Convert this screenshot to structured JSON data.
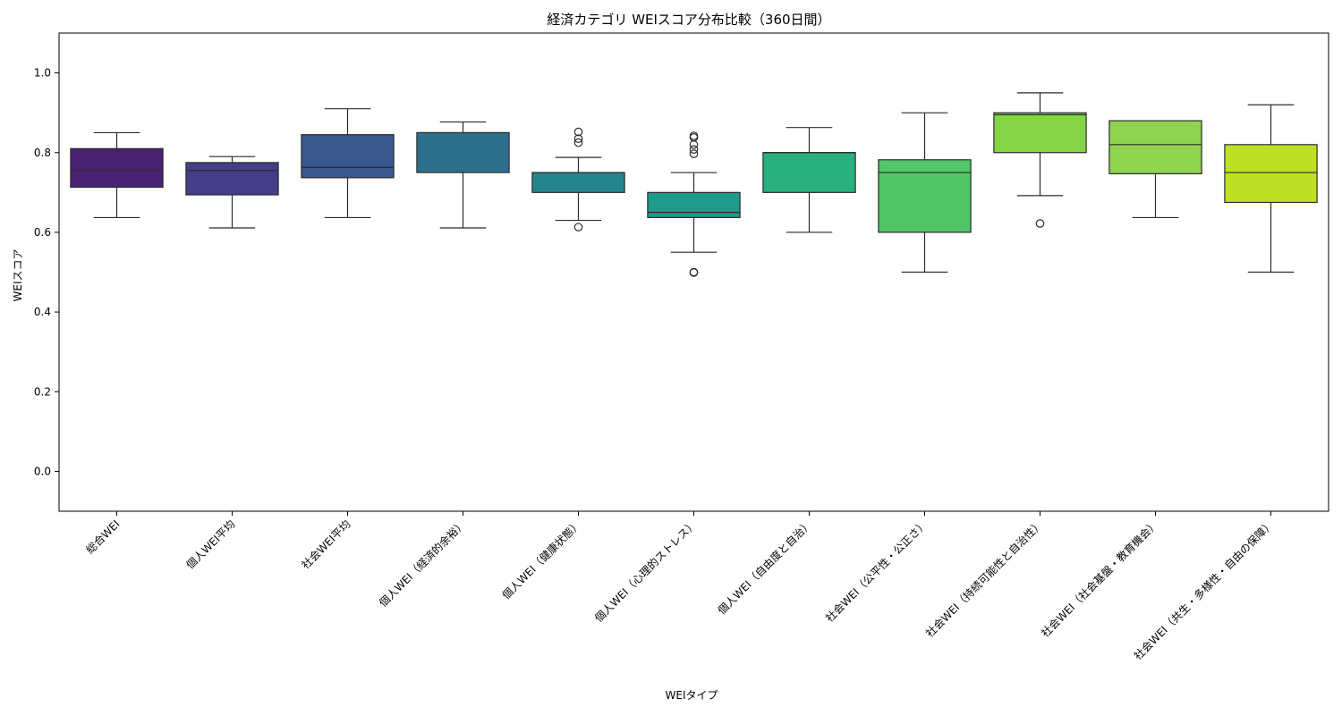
{
  "chart_data": {
    "type": "box",
    "title": "経済カテゴリ WEIスコア分布比較（360日間）",
    "xlabel": "WEIタイプ",
    "ylabel": "WEIスコア",
    "ylim": [
      -0.1,
      1.1
    ],
    "yticks": [
      "0.0",
      "0.2",
      "0.4",
      "0.6",
      "0.8",
      "1.0"
    ],
    "grid": false,
    "categories": [
      "総合WEI",
      "個人WEI平均",
      "社会WEI平均",
      "個人WEI（経済的余裕）",
      "個人WEI（健康状態）",
      "個人WEI（心理的ストレス）",
      "個人WEI（自由度と自治）",
      "社会WEI（公平性・公正さ）",
      "社会WEI（持続可能性と自治性）",
      "社会WEI（社会基盤・教育機会）",
      "社会WEI（共生・多様性・自由の保障）"
    ],
    "boxes": [
      {
        "whisker_low": 0.637,
        "q1": 0.713,
        "median": 0.755,
        "q3": 0.81,
        "whisker_high": 0.85,
        "outliers": [],
        "color": "#482173"
      },
      {
        "whisker_low": 0.611,
        "q1": 0.694,
        "median": 0.755,
        "q3": 0.775,
        "whisker_high": 0.79,
        "outliers": [],
        "color": "#433e85"
      },
      {
        "whisker_low": 0.637,
        "q1": 0.737,
        "median": 0.763,
        "q3": 0.845,
        "whisker_high": 0.91,
        "outliers": [],
        "color": "#38588c"
      },
      {
        "whisker_low": 0.611,
        "q1": 0.75,
        "median": 0.85,
        "q3": 0.85,
        "whisker_high": 0.877,
        "outliers": [],
        "color": "#2d708e"
      },
      {
        "whisker_low": 0.63,
        "q1": 0.7,
        "median": 0.75,
        "q3": 0.75,
        "whisker_high": 0.788,
        "outliers": [
          0.613,
          0.825,
          0.835,
          0.852
        ],
        "color": "#25858e"
      },
      {
        "whisker_low": 0.55,
        "q1": 0.637,
        "median": 0.65,
        "q3": 0.7,
        "whisker_high": 0.75,
        "outliers": [
          0.499,
          0.5,
          0.797,
          0.808,
          0.82,
          0.838,
          0.842
        ],
        "color": "#1e9b8a"
      },
      {
        "whisker_low": 0.6,
        "q1": 0.7,
        "median": 0.8,
        "q3": 0.8,
        "whisker_high": 0.863,
        "outliers": [],
        "color": "#2ab07f"
      },
      {
        "whisker_low": 0.5,
        "q1": 0.6,
        "median": 0.75,
        "q3": 0.782,
        "whisker_high": 0.9,
        "outliers": [],
        "color": "#52c569"
      },
      {
        "whisker_low": 0.692,
        "q1": 0.8,
        "median": 0.895,
        "q3": 0.9,
        "whisker_high": 0.95,
        "outliers": [
          0.622
        ],
        "color": "#86d549"
      },
      {
        "whisker_low": 0.637,
        "q1": 0.747,
        "median": 0.82,
        "q3": 0.88,
        "whisker_high": 0.88,
        "outliers": [],
        "color": "#8fd34e"
      },
      {
        "whisker_low": 0.5,
        "q1": 0.675,
        "median": 0.75,
        "q3": 0.82,
        "whisker_high": 0.92,
        "outliers": [],
        "color": "#bddf26"
      }
    ]
  }
}
